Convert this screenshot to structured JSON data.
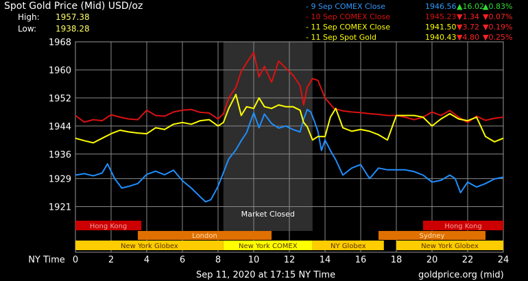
{
  "header": {
    "title": "Spot Gold Price (Mid) USD/oz",
    "high_label": "High:",
    "high_value": "1957.38",
    "low_label": "Low:",
    "low_value": "1938.28"
  },
  "legend": [
    {
      "label": "- 9 Sep COMEX Close",
      "value": "1946.56",
      "change": "16.02",
      "pct": "0.83%",
      "dir": "up",
      "color": "#3399ff",
      "value_color": "#3399ff"
    },
    {
      "label": "- 10 Sep COMEX Close",
      "value": "1945.23",
      "change": "1.34",
      "pct": "0.07%",
      "dir": "down",
      "color": "#dd1111",
      "value_color": "#dd1111"
    },
    {
      "label": "- 11 Sep COMEX Close",
      "value": "1941.50",
      "change": "3.72",
      "pct": "0.19%",
      "dir": "down",
      "color": "#ffff00",
      "value_color": "#ffff00"
    },
    {
      "label": "- 11 Sep Spot Gold",
      "value": "1940.43",
      "change": "4.80",
      "pct": "0.25%",
      "dir": "down",
      "color": "#ffffff",
      "value_color": "#ffff00"
    }
  ],
  "market_closed": "Market Closed",
  "sessions": [
    {
      "name": "Hong Kong",
      "row": 0,
      "start": 0,
      "end": 3.7,
      "color": "#cc0000",
      "text": "#f2a0a0"
    },
    {
      "name": "Hong Kong",
      "row": 0,
      "start": 19.5,
      "end": 24,
      "color": "#cc0000",
      "text": "#f2a0a0"
    },
    {
      "name": "London",
      "row": 1,
      "start": 3.5,
      "end": 11,
      "color": "#e07000",
      "text": "#ffe0b0"
    },
    {
      "name": "Sydney",
      "row": 1,
      "start": 17,
      "end": 23,
      "color": "#e07000",
      "text": "#ffe0b0"
    },
    {
      "name": "New York Globex",
      "row": 2,
      "start": 0,
      "end": 8.3,
      "color": "#ffcc00",
      "text": "#553300"
    },
    {
      "name": "New York COMEX",
      "row": 2,
      "start": 8.3,
      "end": 13.3,
      "color": "#ffff00",
      "text": "#553300"
    },
    {
      "name": "NY Globex",
      "row": 2,
      "start": 13.3,
      "end": 17.3,
      "color": "#ffcc00",
      "text": "#553300"
    },
    {
      "name": "New York Globex",
      "row": 2,
      "start": 18,
      "end": 24,
      "color": "#ffcc00",
      "text": "#553300"
    }
  ],
  "footer": {
    "timestamp": "Sep 11, 2020 at 17:15 NY Time",
    "source": "goldprice.org (mid)"
  },
  "chart_data": {
    "type": "line",
    "xlabel": "NY Time",
    "ylabel": "",
    "x_ticks": [
      0,
      2,
      4,
      6,
      8,
      10,
      12,
      14,
      16,
      18,
      20,
      22,
      24
    ],
    "y_ticks": [
      1921,
      1929,
      1936,
      1944,
      1952,
      1960,
      1968
    ],
    "xlim": [
      0,
      24
    ],
    "ylim": [
      1917,
      1968
    ],
    "grid": true,
    "shaded_region": {
      "label": "Market Closed",
      "x": [
        8.3,
        13.3
      ]
    },
    "series": [
      {
        "name": "9 Sep COMEX Close",
        "color": "#1f8fff",
        "x": [
          0,
          0.5,
          1,
          1.5,
          1.8,
          2.2,
          2.6,
          3,
          3.5,
          4,
          4.5,
          5,
          5.5,
          6,
          6.5,
          7,
          7.3,
          7.6,
          8,
          8.3,
          8.6,
          9,
          9.3,
          9.6,
          10,
          10.3,
          10.6,
          11,
          11.4,
          11.8,
          12.2,
          12.6,
          12.8,
          13,
          13.2,
          13.4,
          13.6,
          13.8,
          14,
          14.3,
          14.6,
          15,
          15.5,
          16,
          16.5,
          17,
          17.5,
          18,
          18.5,
          19,
          19.5,
          20,
          20.5,
          21,
          21.3,
          21.6,
          22,
          22.5,
          23,
          23.5,
          24
        ],
        "values": [
          1930.0,
          1930.4,
          1929.8,
          1930.6,
          1933.2,
          1929.0,
          1926.3,
          1926.8,
          1927.6,
          1930.2,
          1931.1,
          1930.1,
          1931.4,
          1928.4,
          1926.3,
          1923.8,
          1922.4,
          1923.0,
          1926.8,
          1930.7,
          1934.6,
          1937.2,
          1939.8,
          1942.1,
          1947.8,
          1943.5,
          1947.4,
          1944.7,
          1943.4,
          1944.0,
          1943.0,
          1942.3,
          1946.0,
          1948.7,
          1948.0,
          1945.4,
          1942.5,
          1937.0,
          1940.0,
          1937.0,
          1934.4,
          1930.0,
          1932.0,
          1933.0,
          1929.0,
          1932.0,
          1931.5,
          1931.5,
          1931.5,
          1931.0,
          1930.0,
          1928.0,
          1928.5,
          1930.0,
          1929.0,
          1925.0,
          1928.0,
          1926.6,
          1927.6,
          1928.9,
          1929.4
        ]
      },
      {
        "name": "10 Sep COMEX Close",
        "color": "#dd1111",
        "x": [
          0,
          0.5,
          1,
          1.5,
          2,
          2.5,
          3,
          3.5,
          4,
          4.5,
          5,
          5.5,
          6,
          6.5,
          7,
          7.5,
          8,
          8.3,
          8.6,
          9,
          9.3,
          9.6,
          10,
          10.3,
          10.6,
          11,
          11.4,
          11.8,
          12.2,
          12.6,
          12.8,
          13,
          13.3,
          13.6,
          14,
          14.5,
          15,
          15.5,
          16,
          16.5,
          17,
          17.5,
          18,
          18.5,
          19,
          19.5,
          20,
          20.5,
          21,
          21.5,
          22,
          22.5,
          23,
          23.5,
          24
        ],
        "values": [
          1947.0,
          1945.1,
          1945.8,
          1945.5,
          1947.2,
          1946.5,
          1946.0,
          1945.8,
          1948.5,
          1947.0,
          1946.8,
          1948.0,
          1948.5,
          1948.7,
          1947.9,
          1947.7,
          1946.0,
          1947.5,
          1952.0,
          1955.0,
          1959.5,
          1962.0,
          1965.0,
          1958.0,
          1961.0,
          1956.5,
          1962.5,
          1960.5,
          1958.5,
          1955.5,
          1950.0,
          1955.0,
          1957.5,
          1957.0,
          1952.0,
          1949.0,
          1948.3,
          1948.0,
          1947.8,
          1947.5,
          1947.3,
          1947.0,
          1947.0,
          1946.5,
          1945.8,
          1946.5,
          1948.0,
          1947.0,
          1948.4,
          1946.5,
          1945.0,
          1946.8,
          1945.6,
          1946.2,
          1946.5
        ]
      },
      {
        "name": "11 Sep COMEX Close",
        "color": "#ffff00",
        "x": [
          0,
          0.5,
          1,
          1.5,
          2,
          2.5,
          3,
          3.5,
          4,
          4.5,
          5,
          5.5,
          6,
          6.5,
          7,
          7.5,
          8,
          8.3,
          8.6,
          9,
          9.3,
          9.6,
          10,
          10.3,
          10.6,
          11,
          11.4,
          11.8,
          12.2,
          12.6,
          12.8,
          13,
          13.3,
          13.6,
          14,
          14.3,
          14.6,
          15,
          15.5,
          16,
          16.5,
          17,
          17.5,
          18,
          18.5,
          19,
          19.5,
          20,
          20.5,
          21,
          21.5,
          22,
          22.5,
          23,
          23.5,
          24
        ],
        "values": [
          1940.5,
          1939.8,
          1939.2,
          1940.5,
          1941.8,
          1942.8,
          1942.3,
          1942.0,
          1941.8,
          1943.5,
          1943.0,
          1944.5,
          1945.0,
          1944.5,
          1945.5,
          1945.8,
          1944.0,
          1945.0,
          1949.0,
          1953.0,
          1947.0,
          1949.5,
          1949.0,
          1952.0,
          1949.5,
          1949.0,
          1950.0,
          1949.5,
          1949.5,
          1948.5,
          1945.0,
          1943.8,
          1940.0,
          1941.0,
          1941.0,
          1946.5,
          1949.0,
          1943.5,
          1942.5,
          1943.0,
          1942.5,
          1941.5,
          1940.0,
          1947.0,
          1947.0,
          1947.0,
          1946.5,
          1944.0,
          1946.0,
          1947.5,
          1946.0,
          1945.5,
          1946.5,
          1941.0,
          1939.5,
          1940.5
        ]
      }
    ]
  }
}
